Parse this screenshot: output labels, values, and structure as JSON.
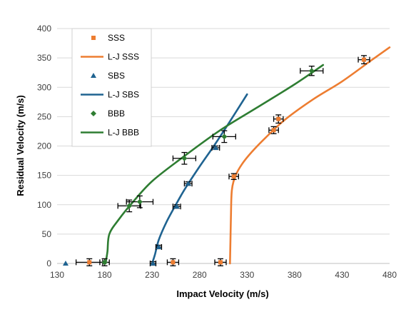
{
  "chart_data": {
    "type": "scatter",
    "xlabel": "Impact Velocity (m/s)",
    "ylabel": "Residual Velocity (m/s)",
    "xlim": [
      130,
      480
    ],
    "ylim": [
      0,
      400
    ],
    "xticks": [
      130,
      180,
      230,
      280,
      330,
      380,
      430,
      480
    ],
    "yticks": [
      0,
      50,
      100,
      150,
      200,
      250,
      300,
      350,
      400
    ],
    "grid": "horizontal",
    "legend_position": "top-left",
    "series": [
      {
        "name": "SSS",
        "kind": "points",
        "marker": "square",
        "color": "#ED7D31",
        "points": [
          {
            "x": 164,
            "y": 2,
            "xerr": 14,
            "yerr": 6
          },
          {
            "x": 252,
            "y": 2,
            "xerr": 6,
            "yerr": 6
          },
          {
            "x": 302,
            "y": 2,
            "xerr": 6,
            "yerr": 6
          },
          {
            "x": 316,
            "y": 148,
            "xerr": 5,
            "yerr": 5
          },
          {
            "x": 358,
            "y": 227,
            "xerr": 5,
            "yerr": 6
          },
          {
            "x": 363,
            "y": 246,
            "xerr": 5,
            "yerr": 7
          },
          {
            "x": 453,
            "y": 347,
            "xerr": 6,
            "yerr": 7
          }
        ]
      },
      {
        "name": "L-J SSS",
        "kind": "line",
        "color": "#ED7D31",
        "points": [
          {
            "x": 312,
            "y": 0
          },
          {
            "x": 312.5,
            "y": 40
          },
          {
            "x": 313,
            "y": 80
          },
          {
            "x": 314,
            "y": 125
          },
          {
            "x": 318,
            "y": 150
          },
          {
            "x": 325,
            "y": 170
          },
          {
            "x": 335,
            "y": 190
          },
          {
            "x": 350,
            "y": 215
          },
          {
            "x": 370,
            "y": 245
          },
          {
            "x": 400,
            "y": 280
          },
          {
            "x": 430,
            "y": 310
          },
          {
            "x": 460,
            "y": 345
          },
          {
            "x": 480,
            "y": 368
          }
        ]
      },
      {
        "name": "SBS",
        "kind": "points",
        "marker": "triangle",
        "color": "#1F6391",
        "points": [
          {
            "x": 139,
            "y": 0,
            "xerr": 0,
            "yerr": 0
          },
          {
            "x": 231,
            "y": 0,
            "xerr": 3,
            "yerr": 3
          },
          {
            "x": 237,
            "y": 28,
            "xerr": 3,
            "yerr": 3
          },
          {
            "x": 256,
            "y": 97,
            "xerr": 4,
            "yerr": 3
          },
          {
            "x": 268,
            "y": 136,
            "xerr": 4,
            "yerr": 3
          },
          {
            "x": 297,
            "y": 197,
            "xerr": 4,
            "yerr": 3
          }
        ]
      },
      {
        "name": "L-J SBS",
        "kind": "line",
        "color": "#1F6391",
        "points": [
          {
            "x": 230,
            "y": 0
          },
          {
            "x": 233,
            "y": 15
          },
          {
            "x": 237,
            "y": 40
          },
          {
            "x": 245,
            "y": 70
          },
          {
            "x": 255,
            "y": 100
          },
          {
            "x": 265,
            "y": 128
          },
          {
            "x": 280,
            "y": 165
          },
          {
            "x": 295,
            "y": 200
          },
          {
            "x": 310,
            "y": 237
          },
          {
            "x": 330,
            "y": 288
          }
        ]
      },
      {
        "name": "BBB",
        "kind": "points",
        "marker": "diamond",
        "color": "#2E7D32",
        "points": [
          {
            "x": 180,
            "y": 2,
            "xerr": 5,
            "yerr": 6
          },
          {
            "x": 206,
            "y": 98,
            "xerr": 12,
            "yerr": 10
          },
          {
            "x": 217,
            "y": 105,
            "xerr": 14,
            "yerr": 10
          },
          {
            "x": 264,
            "y": 179,
            "xerr": 12,
            "yerr": 10
          },
          {
            "x": 306,
            "y": 216,
            "xerr": 12,
            "yerr": 10
          },
          {
            "x": 398,
            "y": 328,
            "xerr": 12,
            "yerr": 8
          }
        ]
      },
      {
        "name": "L-J BBB",
        "kind": "line",
        "color": "#2E7D32",
        "points": [
          {
            "x": 181,
            "y": 0
          },
          {
            "x": 183,
            "y": 20
          },
          {
            "x": 185,
            "y": 50
          },
          {
            "x": 195,
            "y": 75
          },
          {
            "x": 210,
            "y": 105
          },
          {
            "x": 230,
            "y": 140
          },
          {
            "x": 260,
            "y": 178
          },
          {
            "x": 300,
            "y": 225
          },
          {
            "x": 340,
            "y": 265
          },
          {
            "x": 380,
            "y": 305
          },
          {
            "x": 410,
            "y": 338
          }
        ]
      }
    ]
  }
}
